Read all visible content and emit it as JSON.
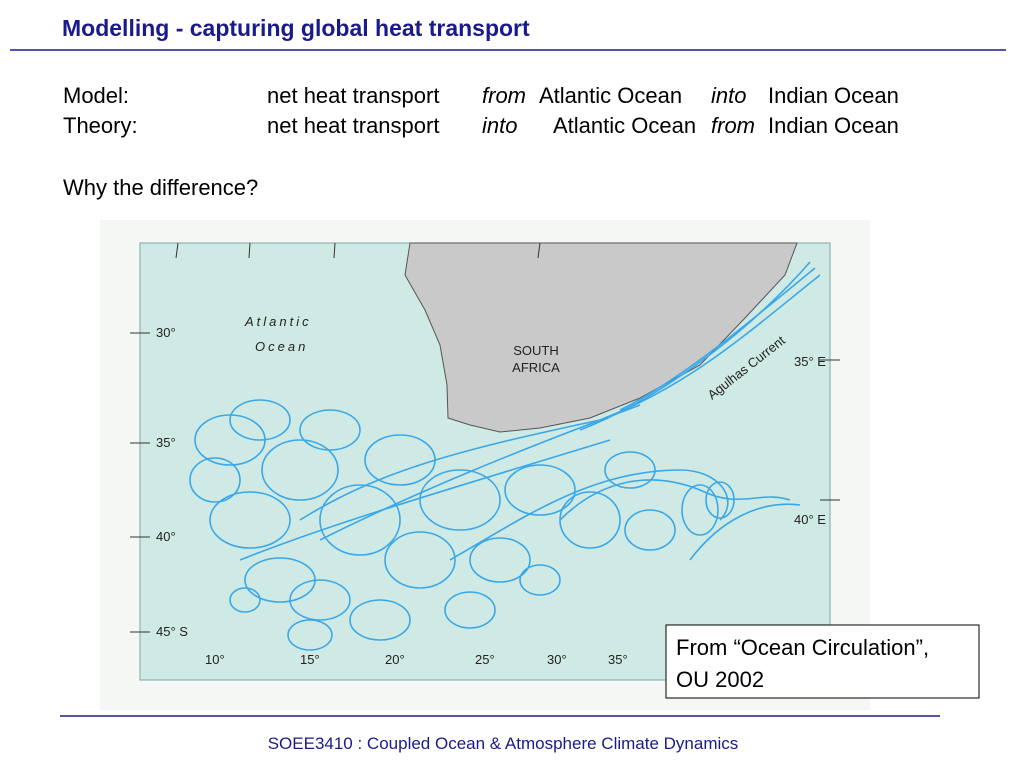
{
  "header": {
    "title": "Modelling - capturing global heat transport"
  },
  "statements": [
    {
      "label": "Model:",
      "parts": [
        "net heat transport",
        "from",
        "Atlantic Ocean",
        "into",
        "Indian Ocean"
      ]
    },
    {
      "label": "Theory:",
      "parts": [
        "net heat transport",
        "into",
        "Atlantic Ocean",
        "from",
        "Indian Ocean"
      ]
    }
  ],
  "question": "Why the difference?",
  "map": {
    "ocean_label": [
      "Atlantic",
      "Ocean"
    ],
    "country_label": [
      "SOUTH",
      "AFRICA"
    ],
    "current_label": "Agulhas Current",
    "lat_labels": [
      "30°",
      "35°",
      "40°",
      "45° S"
    ],
    "east_labels": [
      "35° E",
      "40° E"
    ],
    "lon_labels": [
      "10°",
      "15°",
      "20°",
      "25°",
      "30°",
      "35°"
    ]
  },
  "caption": [
    "From “Ocean Circulation”,",
    "OU 2002"
  ],
  "footer": "SOEE3410 : Coupled Ocean & Atmosphere Climate Dynamics"
}
